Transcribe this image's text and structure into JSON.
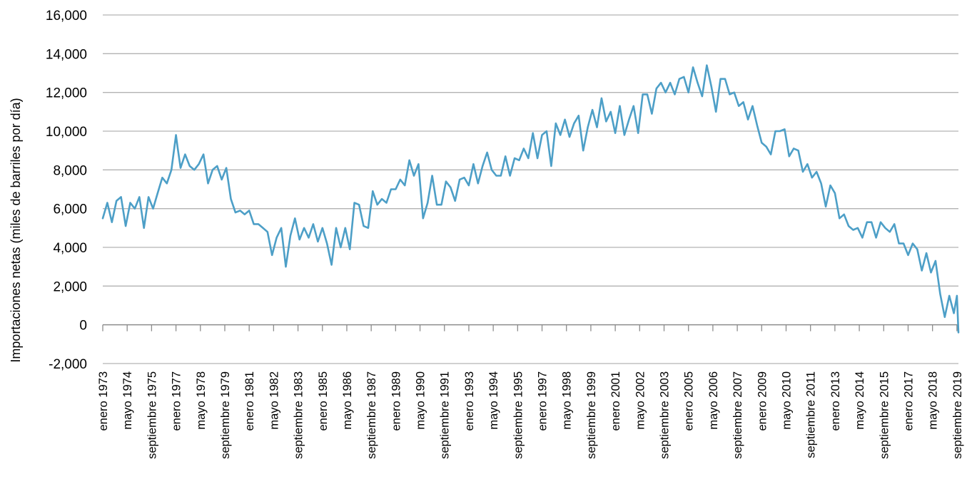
{
  "chart_data": {
    "type": "line",
    "title": "",
    "xlabel": "",
    "ylabel": "Importaciones netas (miles de barriles por día)",
    "ylim": [
      -2000,
      16000
    ],
    "ytick_values": [
      -2000,
      0,
      2000,
      4000,
      6000,
      8000,
      10000,
      12000,
      14000,
      16000
    ],
    "ytick_labels": [
      "-2,000",
      "0",
      "2,000",
      "4,000",
      "6,000",
      "8,000",
      "10,000",
      "12,000",
      "14,000",
      "16,000"
    ],
    "grid": "horizontal",
    "xtick_labels": [
      "enero 1973",
      "mayo 1974",
      "septiembre 1975",
      "enero 1977",
      "mayo 1978",
      "septiembre 1979",
      "enero 1981",
      "mayo 1982",
      "septiembre 1983",
      "enero 1985",
      "mayo 1986",
      "septiembre 1987",
      "enero 1989",
      "mayo 1990",
      "septiembre 1991",
      "enero 1993",
      "mayo 1994",
      "septiembre 1995",
      "enero 1997",
      "mayo 1998",
      "septiembre 1999",
      "enero 2001",
      "mayo 2002",
      "septiembre 2003",
      "enero 2005",
      "mayo 2006",
      "septiembre 2007",
      "enero 2009",
      "mayo 2010",
      "septiembre 2011",
      "enero 2013",
      "mayo 2014",
      "septiembre 2015",
      "enero 2017",
      "mayo 2018",
      "septiembre 2019"
    ],
    "series": [
      {
        "color": "#4d9fc7",
        "x": [
          "1973-01",
          "1973-04",
          "1973-07",
          "1973-10",
          "1974-01",
          "1974-04",
          "1974-07",
          "1974-10",
          "1975-01",
          "1975-04",
          "1975-07",
          "1975-10",
          "1976-01",
          "1976-04",
          "1976-07",
          "1976-10",
          "1977-01",
          "1977-02",
          "1977-04",
          "1977-07",
          "1977-10",
          "1978-01",
          "1978-04",
          "1978-07",
          "1978-10",
          "1979-01",
          "1979-04",
          "1979-07",
          "1979-10",
          "1980-01",
          "1980-04",
          "1980-07",
          "1980-10",
          "1981-01",
          "1981-04",
          "1981-07",
          "1981-10",
          "1982-01",
          "1982-04",
          "1982-07",
          "1982-10",
          "1983-01",
          "1983-04",
          "1983-07",
          "1983-10",
          "1984-01",
          "1984-04",
          "1984-07",
          "1984-10",
          "1985-01",
          "1985-04",
          "1985-07",
          "1985-10",
          "1986-01",
          "1986-04",
          "1986-07",
          "1986-10",
          "1987-01",
          "1987-04",
          "1987-07",
          "1987-10",
          "1988-01",
          "1988-04",
          "1988-07",
          "1988-10",
          "1989-01",
          "1989-04",
          "1989-07",
          "1989-10",
          "1990-01",
          "1990-04",
          "1990-07",
          "1990-10",
          "1991-01",
          "1991-04",
          "1991-07",
          "1991-10",
          "1992-01",
          "1992-04",
          "1992-07",
          "1992-10",
          "1993-01",
          "1993-04",
          "1993-07",
          "1993-10",
          "1994-01",
          "1994-04",
          "1994-07",
          "1994-10",
          "1995-01",
          "1995-04",
          "1995-07",
          "1995-10",
          "1996-01",
          "1996-04",
          "1996-07",
          "1996-10",
          "1997-01",
          "1997-04",
          "1997-07",
          "1997-10",
          "1998-01",
          "1998-04",
          "1998-07",
          "1998-10",
          "1999-01",
          "1999-04",
          "1999-07",
          "1999-10",
          "2000-01",
          "2000-04",
          "2000-07",
          "2000-10",
          "2001-01",
          "2001-04",
          "2001-07",
          "2001-10",
          "2002-01",
          "2002-04",
          "2002-07",
          "2002-10",
          "2003-01",
          "2003-04",
          "2003-07",
          "2003-10",
          "2004-01",
          "2004-04",
          "2004-07",
          "2004-10",
          "2005-01",
          "2005-04",
          "2005-07",
          "2005-10",
          "2006-01",
          "2006-04",
          "2006-07",
          "2006-10",
          "2007-01",
          "2007-04",
          "2007-07",
          "2007-10",
          "2008-01",
          "2008-04",
          "2008-07",
          "2008-10",
          "2009-01",
          "2009-04",
          "2009-07",
          "2009-10",
          "2010-01",
          "2010-04",
          "2010-07",
          "2010-10",
          "2011-01",
          "2011-04",
          "2011-07",
          "2011-10",
          "2012-01",
          "2012-04",
          "2012-07",
          "2012-10",
          "2013-01",
          "2013-04",
          "2013-07",
          "2013-10",
          "2014-01",
          "2014-04",
          "2014-07",
          "2014-10",
          "2015-01",
          "2015-04",
          "2015-07",
          "2015-10",
          "2016-01",
          "2016-04",
          "2016-07",
          "2016-10",
          "2017-01",
          "2017-04",
          "2017-07",
          "2017-10",
          "2018-01",
          "2018-04",
          "2018-07",
          "2018-10",
          "2019-01",
          "2019-04",
          "2019-07",
          "2019-09",
          "2019-10"
        ],
        "y": [
          5500,
          6300,
          5300,
          6400,
          6600,
          5100,
          6300,
          6000,
          6600,
          5000,
          6600,
          6000,
          6800,
          7600,
          7300,
          8000,
          9800,
          9200,
          8100,
          8800,
          8200,
          8000,
          8300,
          8800,
          7300,
          8000,
          8200,
          7500,
          8100,
          6500,
          5800,
          5900,
          5700,
          5900,
          5200,
          5200,
          5000,
          4800,
          3600,
          4500,
          5000,
          3000,
          4600,
          5500,
          4400,
          5000,
          4500,
          5200,
          4300,
          5000,
          4200,
          3100,
          5000,
          4000,
          5000,
          3900,
          6300,
          6200,
          5100,
          5000,
          6900,
          6200,
          6500,
          6300,
          7000,
          7000,
          7500,
          7200,
          8500,
          7700,
          8300,
          5500,
          6300,
          7700,
          6200,
          6200,
          7400,
          7100,
          6400,
          7500,
          7600,
          7200,
          8300,
          7300,
          8200,
          8900,
          8000,
          7700,
          7700,
          8700,
          7700,
          8600,
          8500,
          9100,
          8600,
          9900,
          8600,
          9800,
          10000,
          8200,
          10400,
          9800,
          10600,
          9700,
          10400,
          10800,
          9000,
          10200,
          11100,
          10200,
          11700,
          10500,
          11000,
          9900,
          11300,
          9800,
          10600,
          11300,
          9900,
          11900,
          11900,
          10900,
          12200,
          12500,
          12000,
          12500,
          11900,
          12700,
          12800,
          12000,
          13300,
          12500,
          11800,
          13400,
          12300,
          11000,
          12700,
          12700,
          11900,
          12000,
          11300,
          11500,
          10600,
          11300,
          10300,
          9400,
          9200,
          8800,
          10000,
          10000,
          10100,
          8700,
          9100,
          9000,
          7900,
          8300,
          7600,
          7900,
          7300,
          6100,
          7200,
          6800,
          5500,
          5700,
          5100,
          4900,
          5000,
          4500,
          5300,
          5300,
          4500,
          5300,
          5000,
          4800,
          5200,
          4200,
          4200,
          3600,
          4200,
          3900,
          2800,
          3700,
          2700,
          3300,
          1600,
          400,
          1500,
          600,
          1500,
          -400
        ]
      }
    ]
  }
}
